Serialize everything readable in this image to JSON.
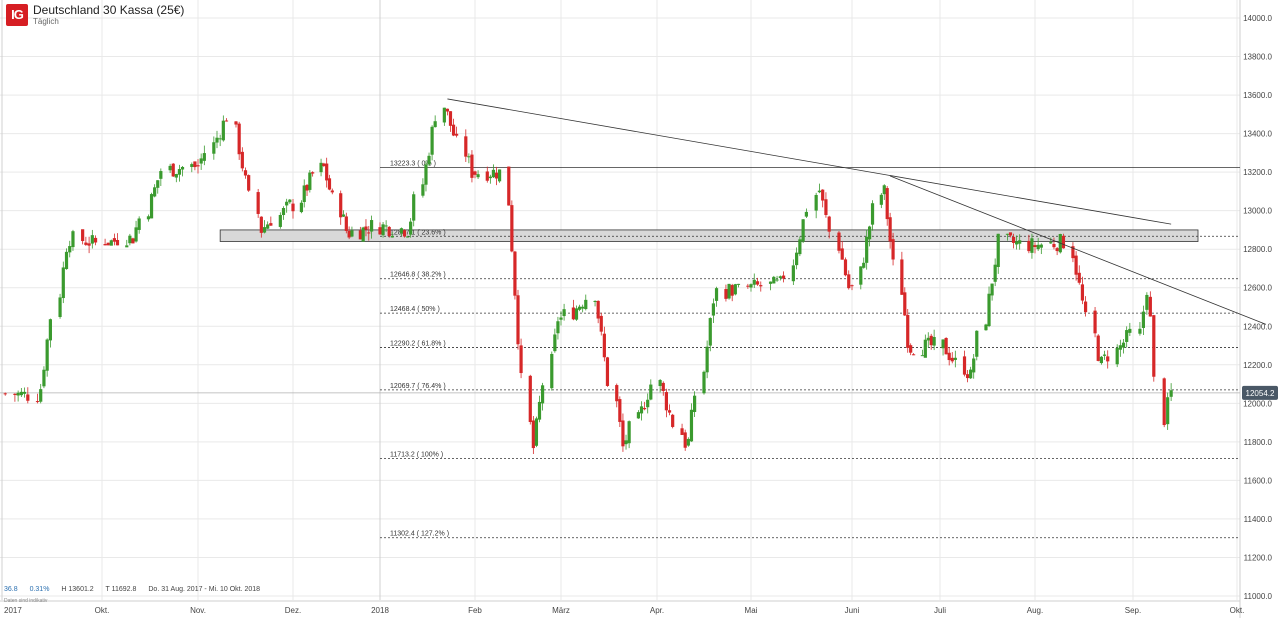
{
  "header": {
    "logo_text": "IG",
    "title": "Deutschland 30 Kassa (25€)",
    "subtitle": "Täglich"
  },
  "stats": {
    "change": "36.8",
    "change_pct": "0.31%",
    "high": "H 13601.2",
    "low": "T 11692.8",
    "range": "Do. 31 Aug. 2017 - Mi. 10 Okt. 2018",
    "note": "Daten sind indikativ"
  },
  "colors": {
    "up": "#3a9a2e",
    "down": "#d62728",
    "grid": "#e9e9e9",
    "price_tag": "#4a5866"
  },
  "chart_data": {
    "type": "candlestick",
    "y_axis": {
      "min": 11000,
      "max": 14000,
      "step": 200,
      "position": "right"
    },
    "x_axis_labels": [
      "2017",
      "Okt.",
      "Nov.",
      "Dez.",
      "2018",
      "Feb",
      "März",
      "Apr.",
      "Mai",
      "Juni",
      "Juli",
      "Aug.",
      "Sep.",
      "Okt."
    ],
    "current_price": "12054.2",
    "fibonacci_levels": [
      {
        "label": "13223.3 ( 0% )",
        "value": 13223.3,
        "style": "solid"
      },
      {
        "label": "12867.1 ( 23.6% )",
        "value": 12867.1,
        "style": "dashed"
      },
      {
        "label": "12646.8 ( 38.2% )",
        "value": 12646.8,
        "style": "dashed"
      },
      {
        "label": "12468.4 ( 50% )",
        "value": 12468.4,
        "style": "dashed"
      },
      {
        "label": "12290.2 ( 61.8% )",
        "value": 12290.2,
        "style": "dashed"
      },
      {
        "label": "12069.7 ( 76.4% )",
        "value": 12069.7,
        "style": "dashed"
      },
      {
        "label": "11713.2 ( 100% )",
        "value": 11713.2,
        "style": "dashed"
      },
      {
        "label": "11302.4 ( 127.2% )",
        "value": 11302.4,
        "style": "dashed"
      }
    ],
    "zone": {
      "low": 12840,
      "high": 12900
    },
    "trendlines": [
      {
        "from": [
          "2018-01-23",
          13580
        ],
        "to": [
          "2018-09-12",
          12930
        ]
      },
      {
        "from": [
          "2018-06-14",
          13180
        ],
        "to": [
          "2018-10-10",
          12410
        ]
      }
    ],
    "monthly_ohlc": [
      {
        "month": "2017-09",
        "open": 12050,
        "high": 12900,
        "low": 12000,
        "close": 12830
      },
      {
        "month": "2017-10",
        "open": 12830,
        "high": 13250,
        "low": 12820,
        "close": 13230
      },
      {
        "month": "2017-11",
        "open": 13230,
        "high": 13530,
        "low": 12860,
        "close": 13030
      },
      {
        "month": "2017-12",
        "open": 13030,
        "high": 13280,
        "low": 12840,
        "close": 12920
      },
      {
        "month": "2018-01",
        "open": 12920,
        "high": 13600,
        "low": 12860,
        "close": 13200
      },
      {
        "month": "2018-02",
        "open": 13200,
        "high": 13240,
        "low": 11690,
        "close": 12440
      },
      {
        "month": "2018-03",
        "open": 12440,
        "high": 12610,
        "low": 11730,
        "close": 12100
      },
      {
        "month": "2018-04",
        "open": 12100,
        "high": 12620,
        "low": 11720,
        "close": 12600
      },
      {
        "month": "2018-05",
        "open": 12600,
        "high": 13170,
        "low": 12580,
        "close": 12600
      },
      {
        "month": "2018-06",
        "open": 12600,
        "high": 13180,
        "low": 12250,
        "close": 12300
      },
      {
        "month": "2018-07",
        "open": 12300,
        "high": 12880,
        "low": 12100,
        "close": 12820
      },
      {
        "month": "2018-08",
        "open": 12820,
        "high": 12880,
        "low": 12160,
        "close": 12360
      },
      {
        "month": "2018-09",
        "open": 12360,
        "high": 12680,
        "low": 11860,
        "close": 12054
      }
    ]
  }
}
